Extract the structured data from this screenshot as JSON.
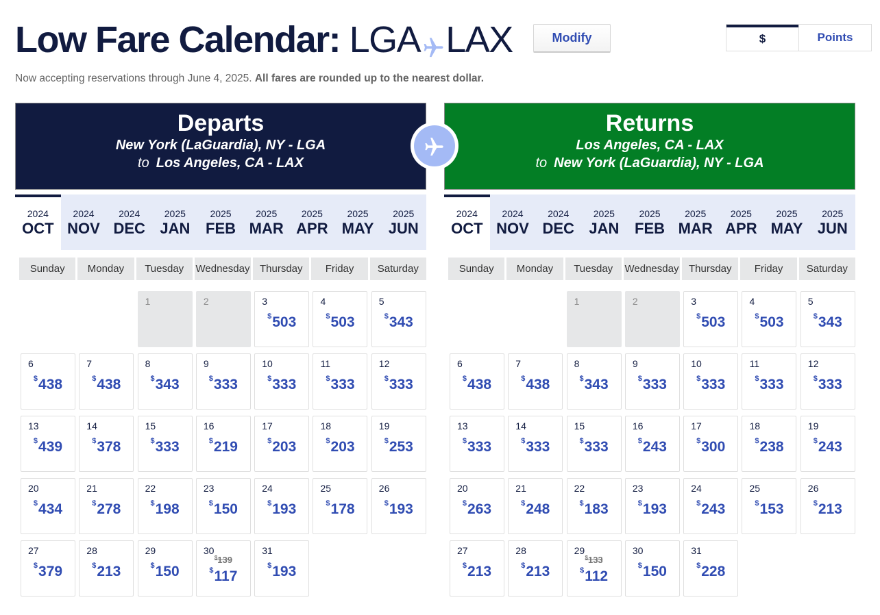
{
  "header": {
    "title_bold": "Low Fare Calendar:",
    "origin": "LGA",
    "destination": "LAX",
    "modify_label": "Modify",
    "currency_toggle": [
      {
        "label": "$",
        "active": true
      },
      {
        "label": "Points",
        "active": false
      }
    ],
    "note_plain": "Now accepting reservations through June 4, 2025.",
    "note_bold": "All fares are rounded up to the nearest dollar."
  },
  "colors": {
    "navy": "#111b40",
    "green": "#037e25",
    "fare_blue": "#304cb2",
    "month_strip": "#e6ebf8",
    "plane_light": "#a4baf5"
  },
  "departs": {
    "title": "Departs",
    "from": "New York (LaGuardia), NY - LGA",
    "to_word": "to",
    "to": "Los Angeles, CA - LAX",
    "months": [
      {
        "year": "2024",
        "month": "OCT",
        "active": true
      },
      {
        "year": "2024",
        "month": "NOV"
      },
      {
        "year": "2024",
        "month": "DEC"
      },
      {
        "year": "2025",
        "month": "JAN"
      },
      {
        "year": "2025",
        "month": "FEB"
      },
      {
        "year": "2025",
        "month": "MAR"
      },
      {
        "year": "2025",
        "month": "APR"
      },
      {
        "year": "2025",
        "month": "MAY"
      },
      {
        "year": "2025",
        "month": "JUN"
      }
    ],
    "weekdays": [
      "Sunday",
      "Monday",
      "Tuesday",
      "Wednesday",
      "Thursday",
      "Friday",
      "Saturday"
    ],
    "currency_symbol": "$",
    "leading_blanks": 2,
    "days": [
      {
        "day": "1",
        "fare": null
      },
      {
        "day": "2",
        "fare": null
      },
      {
        "day": "3",
        "fare": "503"
      },
      {
        "day": "4",
        "fare": "503"
      },
      {
        "day": "5",
        "fare": "343"
      },
      {
        "day": "6",
        "fare": "438"
      },
      {
        "day": "7",
        "fare": "438"
      },
      {
        "day": "8",
        "fare": "343"
      },
      {
        "day": "9",
        "fare": "333"
      },
      {
        "day": "10",
        "fare": "333"
      },
      {
        "day": "11",
        "fare": "333"
      },
      {
        "day": "12",
        "fare": "333"
      },
      {
        "day": "13",
        "fare": "439"
      },
      {
        "day": "14",
        "fare": "378"
      },
      {
        "day": "15",
        "fare": "333"
      },
      {
        "day": "16",
        "fare": "219"
      },
      {
        "day": "17",
        "fare": "203"
      },
      {
        "day": "18",
        "fare": "203"
      },
      {
        "day": "19",
        "fare": "253"
      },
      {
        "day": "20",
        "fare": "434"
      },
      {
        "day": "21",
        "fare": "278"
      },
      {
        "day": "22",
        "fare": "198"
      },
      {
        "day": "23",
        "fare": "150"
      },
      {
        "day": "24",
        "fare": "193"
      },
      {
        "day": "25",
        "fare": "178"
      },
      {
        "day": "26",
        "fare": "193"
      },
      {
        "day": "27",
        "fare": "379"
      },
      {
        "day": "28",
        "fare": "213"
      },
      {
        "day": "29",
        "fare": "150"
      },
      {
        "day": "30",
        "fare": "117",
        "old_fare": "139"
      },
      {
        "day": "31",
        "fare": "193"
      }
    ]
  },
  "returns": {
    "title": "Returns",
    "from": "Los Angeles, CA - LAX",
    "to_word": "to",
    "to": "New York (LaGuardia), NY - LGA",
    "months": [
      {
        "year": "2024",
        "month": "OCT",
        "active": true
      },
      {
        "year": "2024",
        "month": "NOV"
      },
      {
        "year": "2024",
        "month": "DEC"
      },
      {
        "year": "2025",
        "month": "JAN"
      },
      {
        "year": "2025",
        "month": "FEB"
      },
      {
        "year": "2025",
        "month": "MAR"
      },
      {
        "year": "2025",
        "month": "APR"
      },
      {
        "year": "2025",
        "month": "MAY"
      },
      {
        "year": "2025",
        "month": "JUN"
      }
    ],
    "weekdays": [
      "Sunday",
      "Monday",
      "Tuesday",
      "Wednesday",
      "Thursday",
      "Friday",
      "Saturday"
    ],
    "currency_symbol": "$",
    "leading_blanks": 2,
    "days": [
      {
        "day": "1",
        "fare": null
      },
      {
        "day": "2",
        "fare": null
      },
      {
        "day": "3",
        "fare": "503"
      },
      {
        "day": "4",
        "fare": "503"
      },
      {
        "day": "5",
        "fare": "343"
      },
      {
        "day": "6",
        "fare": "438"
      },
      {
        "day": "7",
        "fare": "438"
      },
      {
        "day": "8",
        "fare": "343"
      },
      {
        "day": "9",
        "fare": "333"
      },
      {
        "day": "10",
        "fare": "333"
      },
      {
        "day": "11",
        "fare": "333"
      },
      {
        "day": "12",
        "fare": "333"
      },
      {
        "day": "13",
        "fare": "333"
      },
      {
        "day": "14",
        "fare": "333"
      },
      {
        "day": "15",
        "fare": "333"
      },
      {
        "day": "16",
        "fare": "243"
      },
      {
        "day": "17",
        "fare": "300"
      },
      {
        "day": "18",
        "fare": "238"
      },
      {
        "day": "19",
        "fare": "243"
      },
      {
        "day": "20",
        "fare": "263"
      },
      {
        "day": "21",
        "fare": "248"
      },
      {
        "day": "22",
        "fare": "183"
      },
      {
        "day": "23",
        "fare": "193"
      },
      {
        "day": "24",
        "fare": "243"
      },
      {
        "day": "25",
        "fare": "153"
      },
      {
        "day": "26",
        "fare": "213"
      },
      {
        "day": "27",
        "fare": "213"
      },
      {
        "day": "28",
        "fare": "213"
      },
      {
        "day": "29",
        "fare": "112",
        "old_fare": "133"
      },
      {
        "day": "30",
        "fare": "150"
      },
      {
        "day": "31",
        "fare": "228"
      }
    ]
  }
}
